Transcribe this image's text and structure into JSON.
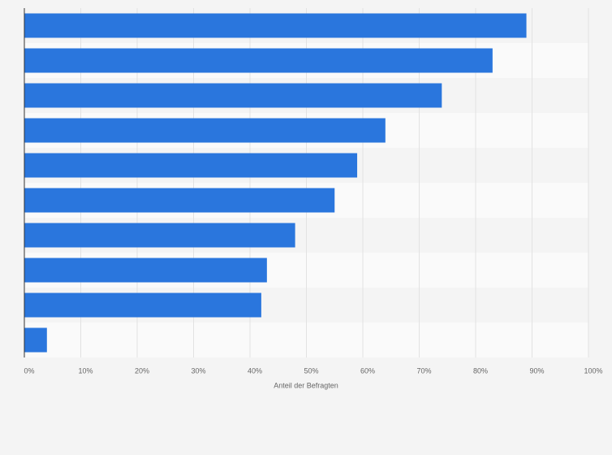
{
  "chart_data": {
    "type": "barh",
    "xlabel": "Anteil der Befragten",
    "categories": [
      null,
      null,
      null,
      null,
      null,
      null,
      null,
      null,
      null,
      null
    ],
    "values": [
      89,
      83,
      74,
      64,
      59,
      55,
      48,
      43,
      42,
      4
    ],
    "color": "#2a76dd",
    "xlim": [
      0,
      100
    ],
    "xticks": [
      {
        "value": 0,
        "label": "0%"
      },
      {
        "value": 10,
        "label": "10%"
      },
      {
        "value": 20,
        "label": "20%"
      },
      {
        "value": 30,
        "label": "30%"
      },
      {
        "value": 40,
        "label": "40%"
      },
      {
        "value": 50,
        "label": "50%"
      },
      {
        "value": 60,
        "label": "60%"
      },
      {
        "value": 70,
        "label": "70%"
      },
      {
        "value": 80,
        "label": "80%"
      },
      {
        "value": 90,
        "label": "90%"
      },
      {
        "value": 100,
        "label": "100%"
      }
    ],
    "grid": true
  }
}
